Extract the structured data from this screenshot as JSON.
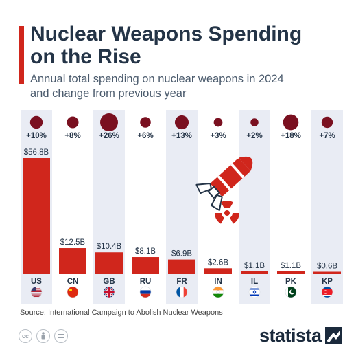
{
  "header": {
    "title_line1": "Nuclear Weapons Spending",
    "title_line2": "on the Rise",
    "subtitle_line1": "Annual total spending on nuclear weapons in 2024",
    "subtitle_line2": "and change from previous year"
  },
  "footer": {
    "source": "Source: International Campaign to Abolish Nuclear Weapons",
    "brand": "statista",
    "license_icons": [
      "cc-icon",
      "by-icon",
      "nd-icon"
    ]
  },
  "colors": {
    "bar": "#d0261c",
    "bubble": "#7a1020",
    "column_background": "#e9ecf4",
    "title": "#243447",
    "accent": "#d0261c"
  },
  "chart_data": {
    "type": "bar",
    "categories": [
      "US",
      "CN",
      "GB",
      "RU",
      "FR",
      "IN",
      "IL",
      "PK",
      "KP"
    ],
    "value_labels": [
      "$56.8B",
      "$12.5B",
      "$10.4B",
      "$8.1B",
      "$6.9B",
      "$2.6B",
      "$1.1B",
      "$1.1B",
      "$0.6B"
    ],
    "change_labels": [
      "+10%",
      "+8%",
      "+26%",
      "+6%",
      "+13%",
      "+3%",
      "+2%",
      "+18%",
      "+7%"
    ],
    "series": [
      {
        "values": [
          56.8,
          12.5,
          10.4,
          8.1,
          6.9,
          2.6,
          1.1,
          1.1,
          0.6
        ]
      },
      {
        "values": [
          10,
          8,
          26,
          6,
          13,
          3,
          2,
          18,
          7
        ]
      }
    ],
    "unit": "billion USD",
    "flags": [
      "flag-us-icon",
      "flag-cn-icon",
      "flag-gb-icon",
      "flag-ru-icon",
      "flag-fr-icon",
      "flag-in-icon",
      "flag-il-icon",
      "flag-pk-icon",
      "flag-kp-icon"
    ],
    "decoration": [
      "missile-icon",
      "radiation-icon"
    ]
  }
}
